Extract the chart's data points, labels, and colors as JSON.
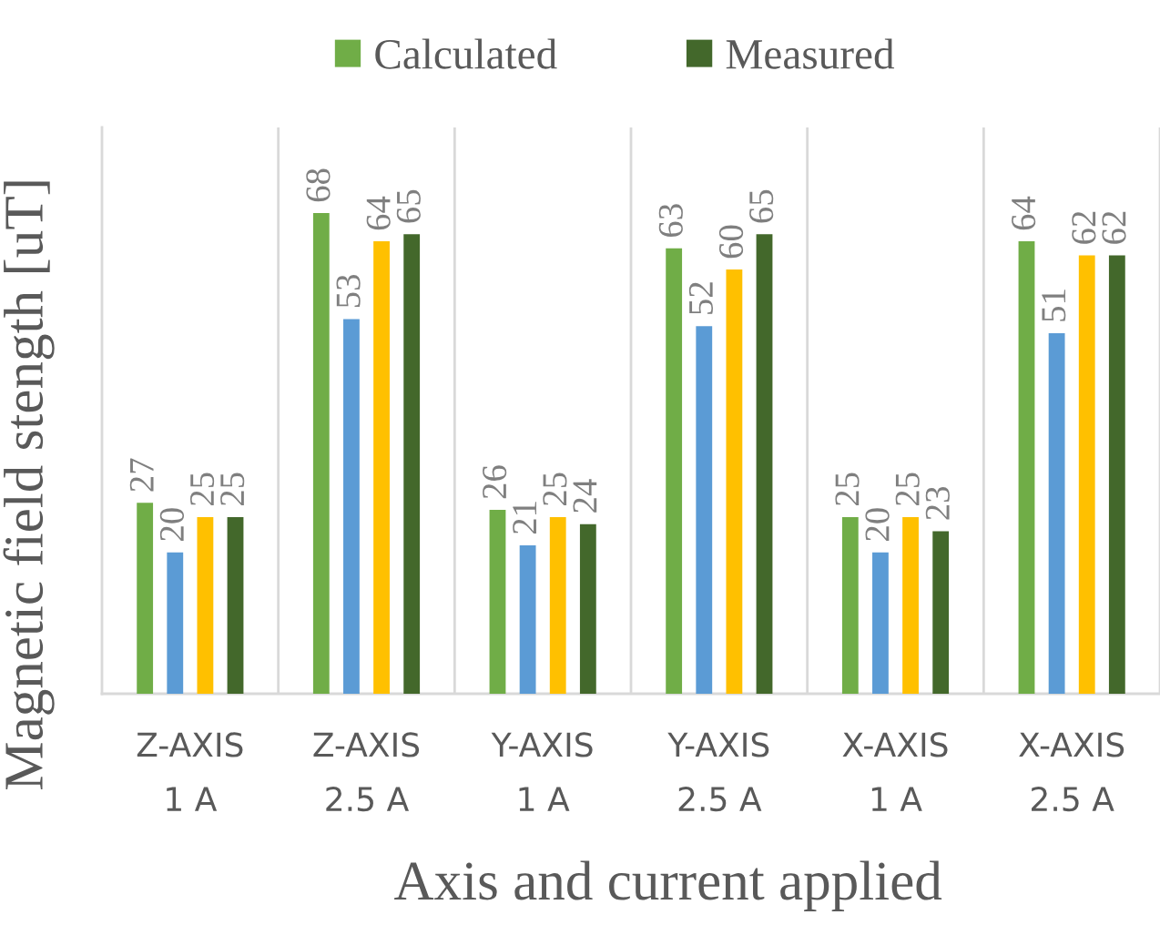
{
  "chart_data": {
    "type": "bar",
    "xlabel": "Axis and current applied",
    "ylabel": "Magnetic field stength [uT]",
    "categories": [
      "Z-AXIS\n1 A",
      "Z-AXIS\n2.5 A",
      "Y-AXIS\n1 A",
      "Y-AXIS\n2.5 A",
      "X-AXIS\n1 A",
      "X-AXIS\n2.5 A"
    ],
    "series": [
      {
        "name": "Calculated",
        "color": "#70ad47",
        "values": [
          27,
          68,
          26,
          63,
          25,
          64
        ]
      },
      {
        "color": "#5b9bd5",
        "values": [
          20,
          53,
          21,
          52,
          20,
          51
        ]
      },
      {
        "color": "#ffc000",
        "values": [
          25,
          64,
          25,
          60,
          25,
          62
        ]
      },
      {
        "name": "Measured",
        "color": "#43682b",
        "values": [
          25,
          65,
          24,
          65,
          23,
          62
        ]
      }
    ],
    "data_labels": true,
    "grid": "x",
    "legend": "top",
    "tick_labels": "x"
  }
}
